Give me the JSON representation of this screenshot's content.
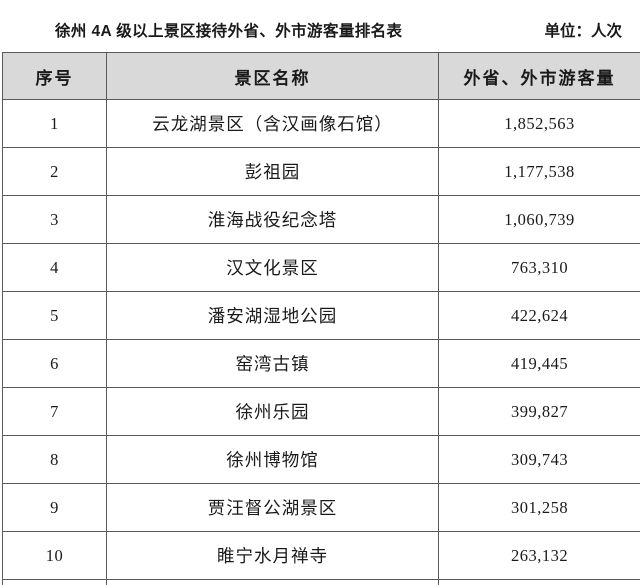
{
  "title": "徐州 4A 级以上景区接待外省、外市游客量排名表",
  "unit_label": "单位：人次",
  "table": {
    "columns": [
      "序号",
      "景区名称",
      "外省、外市游客量"
    ],
    "rows": [
      {
        "rank": "1",
        "name": "云龙湖景区（含汉画像石馆）",
        "visitors": "1,852,563"
      },
      {
        "rank": "2",
        "name": "彭祖园",
        "visitors": "1,177,538"
      },
      {
        "rank": "3",
        "name": "淮海战役纪念塔",
        "visitors": "1,060,739"
      },
      {
        "rank": "4",
        "name": "汉文化景区",
        "visitors": "763,310"
      },
      {
        "rank": "5",
        "name": "潘安湖湿地公园",
        "visitors": "422,624"
      },
      {
        "rank": "6",
        "name": "窑湾古镇",
        "visitors": "419,445"
      },
      {
        "rank": "7",
        "name": "徐州乐园",
        "visitors": "399,827"
      },
      {
        "rank": "8",
        "name": "徐州博物馆",
        "visitors": "309,743"
      },
      {
        "rank": "9",
        "name": "贾汪督公湖景区",
        "visitors": "301,258"
      },
      {
        "rank": "10",
        "name": "睢宁水月禅寺",
        "visitors": "263,132"
      }
    ]
  },
  "colors": {
    "page_bg": "#ffffff",
    "header_bg": "#d9d9d9",
    "border": "#5a5a5a",
    "text": "#1a1a1a"
  }
}
